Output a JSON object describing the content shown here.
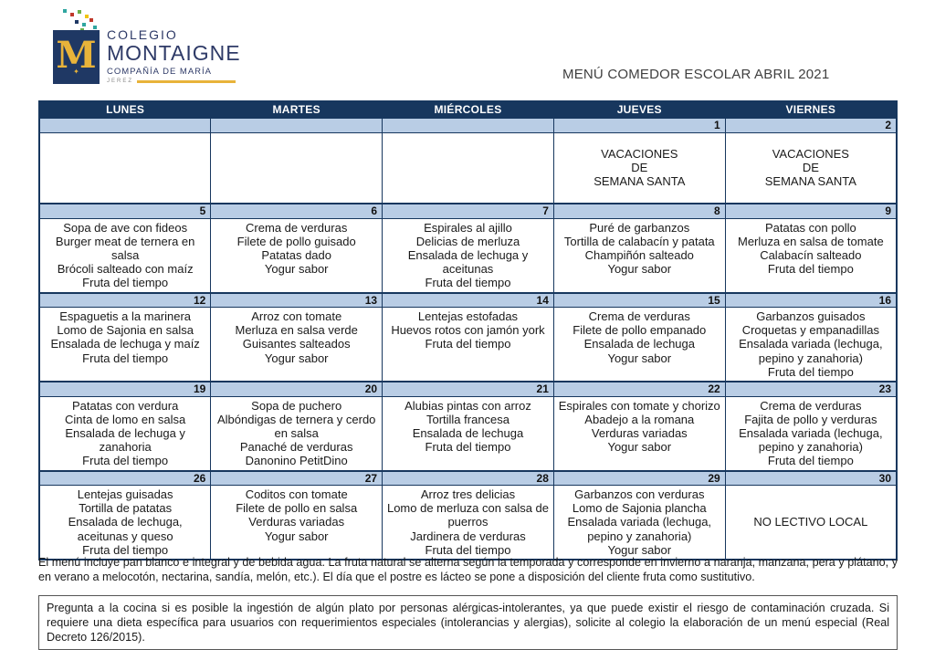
{
  "page": {
    "title": "MENÚ COMEDOR ESCOLAR ABRIL 2021"
  },
  "logo": {
    "monogram": "M",
    "emblem": "✦",
    "line1": "COLEGIO",
    "line2": "MONTAIGNE",
    "line3": "COMPAÑÍA DE MARÍA",
    "city": "JEREZ"
  },
  "colors": {
    "header_bg": "#17375E",
    "date_bg": "#B9CDE5",
    "border": "#17375E",
    "logo_navy": "#1F3864",
    "logo_gold": "#E8B33A",
    "dot_colors": [
      "#2FA6A0",
      "#C0392B",
      "#6AB04A",
      "#F1C40F",
      "#1F3864",
      "#2FA6A0",
      "#C0392B",
      "#6AB04A",
      "#F1C40F",
      "#2FA6A0"
    ]
  },
  "table": {
    "headers": [
      "LUNES",
      "MARTES",
      "MIÉRCOLES",
      "JUEVES",
      "VIERNES"
    ],
    "weeks": [
      {
        "dates": [
          "",
          "",
          "",
          "1",
          "2"
        ],
        "cells": [
          [],
          [],
          [],
          [
            "VACACIONES",
            "DE",
            "SEMANA SANTA"
          ],
          [
            "VACACIONES",
            "DE",
            "SEMANA SANTA"
          ]
        ]
      },
      {
        "dates": [
          "5",
          "6",
          "7",
          "8",
          "9"
        ],
        "cells": [
          [
            "Sopa de ave con fideos",
            "Burger meat de ternera en salsa",
            "Brócoli salteado con maíz",
            "Fruta del tiempo"
          ],
          [
            "Crema de verduras",
            "Filete de pollo guisado",
            "Patatas dado",
            "Yogur sabor"
          ],
          [
            "Espirales al ajillo",
            "Delicias de merluza",
            "Ensalada de lechuga y aceitunas",
            "Fruta del tiempo"
          ],
          [
            "Puré de garbanzos",
            "Tortilla de calabacín y patata",
            "Champiñón salteado",
            "Yogur sabor"
          ],
          [
            "Patatas con pollo",
            "Merluza en salsa de tomate",
            "Calabacín salteado",
            "Fruta del tiempo"
          ]
        ]
      },
      {
        "dates": [
          "12",
          "13",
          "14",
          "15",
          "16"
        ],
        "cells": [
          [
            "Espaguetis a la marinera",
            "Lomo de Sajonia en salsa",
            "Ensalada de lechuga y maíz",
            "Fruta del tiempo"
          ],
          [
            "Arroz con tomate",
            "Merluza en salsa verde",
            "Guisantes salteados",
            "Yogur sabor"
          ],
          [
            "Lentejas estofadas",
            "Huevos rotos con jamón york",
            "Fruta del tiempo"
          ],
          [
            "Crema de verduras",
            "Filete de pollo empanado",
            "Ensalada de lechuga",
            "Yogur sabor"
          ],
          [
            "Garbanzos guisados",
            "Croquetas y empanadillas",
            "Ensalada variada (lechuga, pepino y zanahoria)",
            "Fruta del tiempo"
          ]
        ]
      },
      {
        "dates": [
          "19",
          "20",
          "21",
          "22",
          "23"
        ],
        "cells": [
          [
            "Patatas con verdura",
            "Cinta de lomo en salsa",
            "Ensalada de lechuga y zanahoria",
            "Fruta del tiempo"
          ],
          [
            "Sopa de puchero",
            "Albóndigas de ternera y cerdo en salsa",
            "Panaché de verduras",
            "Danonino PetitDino"
          ],
          [
            "Alubias pintas con arroz",
            "Tortilla francesa",
            "Ensalada de lechuga",
            "Fruta del tiempo"
          ],
          [
            "Espirales con tomate y chorizo",
            "Abadejo a la romana",
            "Verduras variadas",
            "Yogur sabor"
          ],
          [
            "Crema de verduras",
            "Fajita de pollo y verduras",
            "Ensalada variada (lechuga, pepino y zanahoria)",
            "Fruta del tiempo"
          ]
        ]
      },
      {
        "dates": [
          "26",
          "27",
          "28",
          "29",
          "30"
        ],
        "cells": [
          [
            "Lentejas guisadas",
            "Tortilla de patatas",
            "Ensalada de lechuga, aceitunas y queso",
            "Fruta del tiempo"
          ],
          [
            "Coditos con tomate",
            "Filete de pollo en salsa",
            "Verduras variadas",
            "Yogur sabor"
          ],
          [
            "Arroz tres delicias",
            "Lomo de merluza con salsa de puerros",
            "Jardinera de verduras",
            "Fruta del tiempo"
          ],
          [
            "Garbanzos con verduras",
            "Lomo de Sajonia plancha",
            "Ensalada variada (lechuga, pepino y zanahoria)",
            "Yogur sabor"
          ],
          [
            "NO LECTIVO LOCAL"
          ]
        ]
      }
    ]
  },
  "notes": {
    "general": "El menú incluye pan blanco e integral y de bebida agua. La fruta natural se alterna según la temporada y corresponde en invierno a naranja, manzana, pera y plátano, y en verano a melocotón, nectarina, sandía, melón, etc.). El día que el postre es lácteo se pone a disposición del cliente fruta como sustitutivo.",
    "allergy": "Pregunta a la cocina si es posible la ingestión de algún plato por personas alérgicas-intolerantes, ya que puede existir el riesgo de contaminación cruzada. Si requiere una dieta específica para usuarios con requerimientos especiales (intolerancias y alergias), solicite al colegio la elaboración de un menú especial (Real Decreto 126/2015)."
  }
}
